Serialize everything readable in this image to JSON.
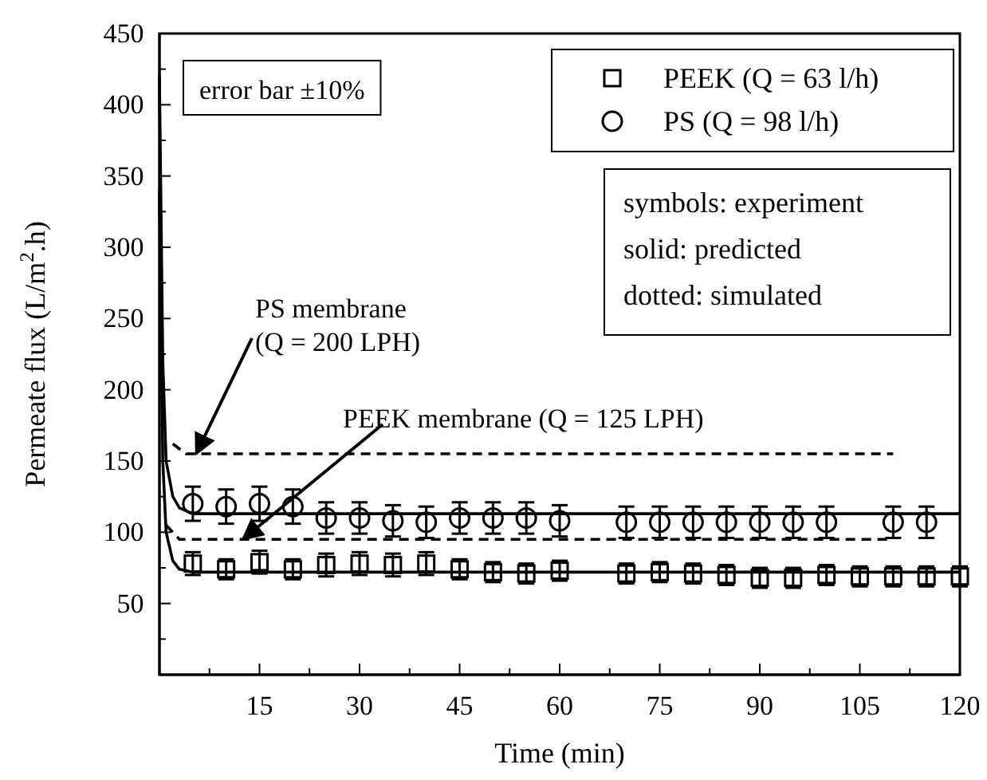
{
  "chart_data": {
    "type": "scatter",
    "xlabel": "Time (min)",
    "ylabel": "Permeate flux (L/m$^{2}$.h)",
    "xlim": [
      0,
      120
    ],
    "ylim": [
      0,
      450
    ],
    "xticks": [
      {
        "value": 7.5,
        "label": null
      },
      15,
      {
        "value": 22.5,
        "label": null
      },
      30,
      {
        "value": 37.5,
        "label": null
      },
      45,
      {
        "value": 52.5,
        "label": null
      },
      60,
      {
        "value": 67.5,
        "label": null
      },
      75,
      {
        "value": 82.5,
        "label": null
      },
      90,
      {
        "value": 97.5,
        "label": null
      },
      105,
      {
        "value": 112.5,
        "label": null
      },
      120
    ],
    "yticks": [
      {
        "value": 25,
        "label": null
      },
      50,
      {
        "value": 75,
        "label": null
      },
      100,
      {
        "value": 125,
        "label": null
      },
      150,
      {
        "value": 175,
        "label": null
      },
      200,
      {
        "value": 225,
        "label": null
      },
      250,
      {
        "value": 275,
        "label": null
      },
      300,
      {
        "value": 325,
        "label": null
      },
      350,
      {
        "value": 375,
        "label": null
      },
      400,
      {
        "value": 425,
        "label": null
      },
      450
    ],
    "grid": false,
    "legend": "top right",
    "series": [
      {
        "name": "PEEK (Q = 63 l/h)",
        "marker": "square",
        "color": "#000000",
        "x": [
          5,
          10,
          15,
          20,
          25,
          30,
          35,
          40,
          45,
          50,
          55,
          60,
          70,
          75,
          80,
          85,
          90,
          95,
          100,
          105,
          110,
          115,
          120
        ],
        "values": [
          78,
          74,
          79,
          74,
          77,
          78,
          77,
          78,
          74,
          72,
          71,
          73,
          71,
          72,
          71,
          70,
          68,
          68,
          70,
          69,
          69,
          69,
          69
        ],
        "errors": [
          8,
          7,
          8,
          7,
          8,
          8,
          8,
          8,
          7,
          7,
          7,
          7,
          7,
          7,
          7,
          7,
          7,
          7,
          7,
          7,
          7,
          7,
          7
        ]
      },
      {
        "name": "PS (Q = 98 l/h)",
        "marker": "circle",
        "color": "#000000",
        "x": [
          5,
          10,
          15,
          20,
          25,
          30,
          35,
          40,
          45,
          50,
          55,
          60,
          70,
          75,
          80,
          85,
          90,
          95,
          100,
          110,
          115
        ],
        "values": [
          120,
          118,
          120,
          118,
          110,
          110,
          108,
          107,
          110,
          110,
          110,
          108,
          107,
          107,
          107,
          107,
          107,
          107,
          107,
          107,
          107
        ],
        "errors": [
          12,
          12,
          12,
          12,
          11,
          11,
          11,
          11,
          11,
          11,
          11,
          11,
          11,
          11,
          11,
          11,
          11,
          11,
          11,
          11,
          11
        ]
      },
      {
        "type": "line",
        "line_style": "solid",
        "color": "#000000",
        "x": [
          0,
          0.5,
          1,
          2,
          3,
          5,
          120
        ],
        "values": [
          340,
          150,
          100,
          80,
          74,
          72,
          72
        ]
      },
      {
        "type": "line",
        "line_style": "solid",
        "color": "#000000",
        "x": [
          0,
          0.5,
          1,
          2,
          3,
          5,
          120
        ],
        "values": [
          420,
          220,
          150,
          125,
          117,
          113,
          113
        ]
      },
      {
        "type": "line",
        "line_style": "dashed",
        "color": "#000000",
        "x": [
          1,
          3,
          110
        ],
        "values": [
          105,
          95,
          95
        ]
      },
      {
        "type": "line",
        "line_style": "dashed",
        "color": "#000000",
        "x": [
          2,
          4,
          110
        ],
        "values": [
          162,
          155,
          155
        ]
      }
    ],
    "annotations": [
      "error bar ±10%",
      "symbols: experiment",
      "solid: predicted",
      "dotted: simulated",
      {
        "text": "PS membrane (Q = 200 LPH)",
        "x": 5.5,
        "y": 155
      },
      {
        "text": "PEEK membrane (Q = 125 LPH)",
        "x": 12.5,
        "y": 95
      }
    ]
  }
}
